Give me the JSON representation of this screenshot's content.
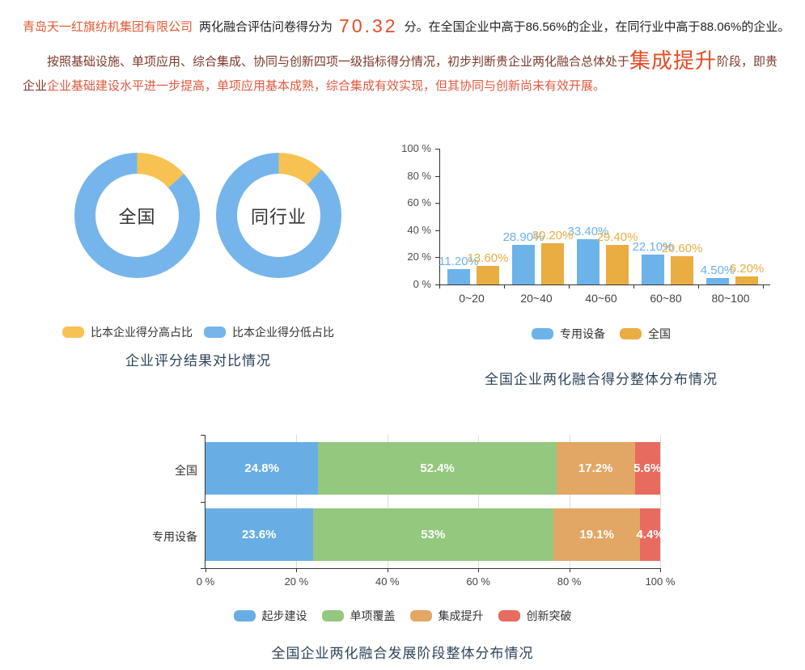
{
  "header": {
    "company": "青岛天一红旗纺机集团有限公司",
    "score_prefix": "两化融合评估问卷得分为",
    "score": "70.32",
    "score_suffix": "分。在全国企业中高于86.56%的企业，在同行业中高于88.06%的企业。"
  },
  "summary": {
    "part1": "按照基础设施、单项应用、综合集成、协同与创新四项一级指标得分情况，初步判断贵企业两化融合总体处于",
    "stage": "集成提升",
    "part2": "阶段，即贵企业",
    "part3": "企业基础建设水平进一步提高，单项应用基本成熟，综合集成有效实现，但其协同与创新尚未有效开展。"
  },
  "colors": {
    "company_accent": "#e25a33",
    "score_accent": "#e44c24",
    "paragraph_dark_red": "#7d3a2d",
    "paragraph_highlight": "#e05a40",
    "chart_title": "#2f4459"
  },
  "chart_data": [
    {
      "type": "pie",
      "title": "企业评分结果对比情况",
      "donuts": [
        {
          "label": "全国",
          "higher_pct": 13.44,
          "lower_pct": 86.56
        },
        {
          "label": "同行业",
          "higher_pct": 11.94,
          "lower_pct": 88.06
        }
      ],
      "legend": [
        {
          "label": "比本企业得分高占比",
          "color": "#f8c253"
        },
        {
          "label": "比本企业得分低占比",
          "color": "#76b5eb"
        }
      ]
    },
    {
      "type": "bar",
      "title": "全国企业两化融合得分整体分布情况",
      "categories": [
        "0~20",
        "20~40",
        "40~60",
        "60~80",
        "80~100"
      ],
      "series": [
        {
          "name": "专用设备",
          "color": "#6db3ea",
          "values": [
            11.2,
            28.9,
            33.4,
            22.1,
            4.5
          ],
          "labels": [
            "11.20%",
            "28.90%",
            "33.40%",
            "22.10%",
            "4.50%"
          ]
        },
        {
          "name": "全国",
          "color": "#e9ad41",
          "values": [
            13.6,
            30.2,
            29.4,
            20.6,
            6.2
          ],
          "labels": [
            "13.60%",
            "30.20%",
            "29.40%",
            "20.60%",
            "6.20%"
          ]
        }
      ],
      "ylabels": [
        "0 %",
        "20 %",
        "40 %",
        "60 %",
        "80 %",
        "100 %"
      ],
      "ylim": [
        0,
        100
      ],
      "legend_position": "bottom"
    },
    {
      "type": "stacked-bar",
      "title": "全国企业两化融合发展阶段整体分布情况",
      "rows": [
        {
          "name": "全国",
          "values": [
            24.8,
            52.4,
            17.2,
            5.6
          ],
          "labels": [
            "24.8%",
            "52.4%",
            "17.2%",
            "5.6%"
          ]
        },
        {
          "name": "专用设备",
          "values": [
            23.6,
            53,
            19.1,
            4.4
          ],
          "labels": [
            "23.6%",
            "53%",
            "19.1%",
            "4.4%"
          ]
        }
      ],
      "stages": [
        {
          "label": "起步建设",
          "color": "#68aee5"
        },
        {
          "label": "单项覆盖",
          "color": "#93c87e"
        },
        {
          "label": "集成提升",
          "color": "#e2a765"
        },
        {
          "label": "创新突破",
          "color": "#e76b5f"
        }
      ],
      "xlabels": [
        "0 %",
        "20 %",
        "40 %",
        "60 %",
        "80 %",
        "100 %"
      ],
      "xlim": [
        0,
        100
      ],
      "grid": true,
      "legend_position": "bottom"
    }
  ]
}
